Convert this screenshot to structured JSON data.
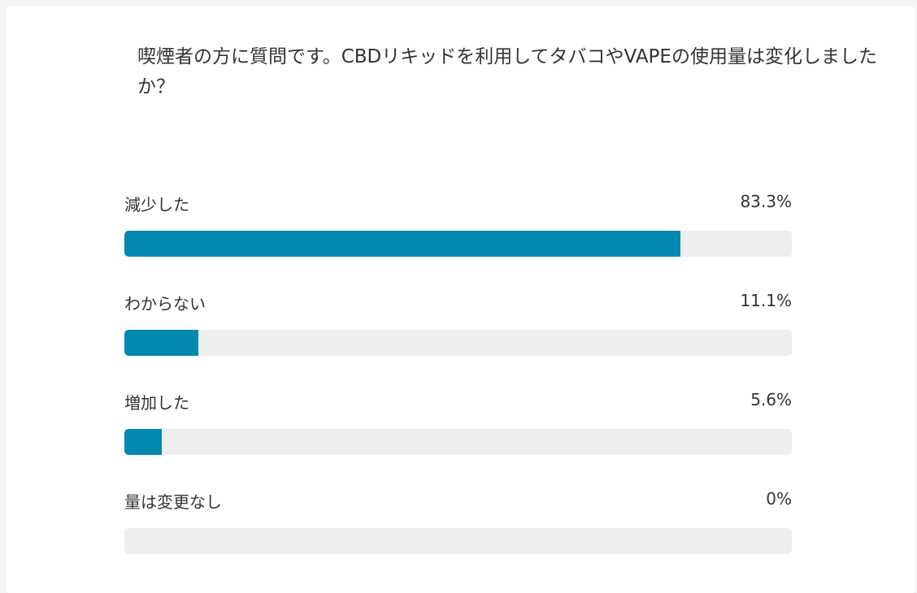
{
  "question": {
    "text": "喫煙者の方に質問です。CBDリキッドを利用してタバコやVAPEの使用量は変化しましたか？"
  },
  "colors": {
    "bar_fill": "#0088b0",
    "bar_track": "#eeeeee",
    "text": "#333333"
  },
  "options": [
    {
      "label": "減少した",
      "percent_text": "83.3%",
      "fraction": 0.833
    },
    {
      "label": "わからない",
      "percent_text": "11.1%",
      "fraction": 0.111
    },
    {
      "label": "増加した",
      "percent_text": "5.6%",
      "fraction": 0.056
    },
    {
      "label": "量は変更なし",
      "percent_text": "0%",
      "fraction": 0.0
    }
  ]
}
